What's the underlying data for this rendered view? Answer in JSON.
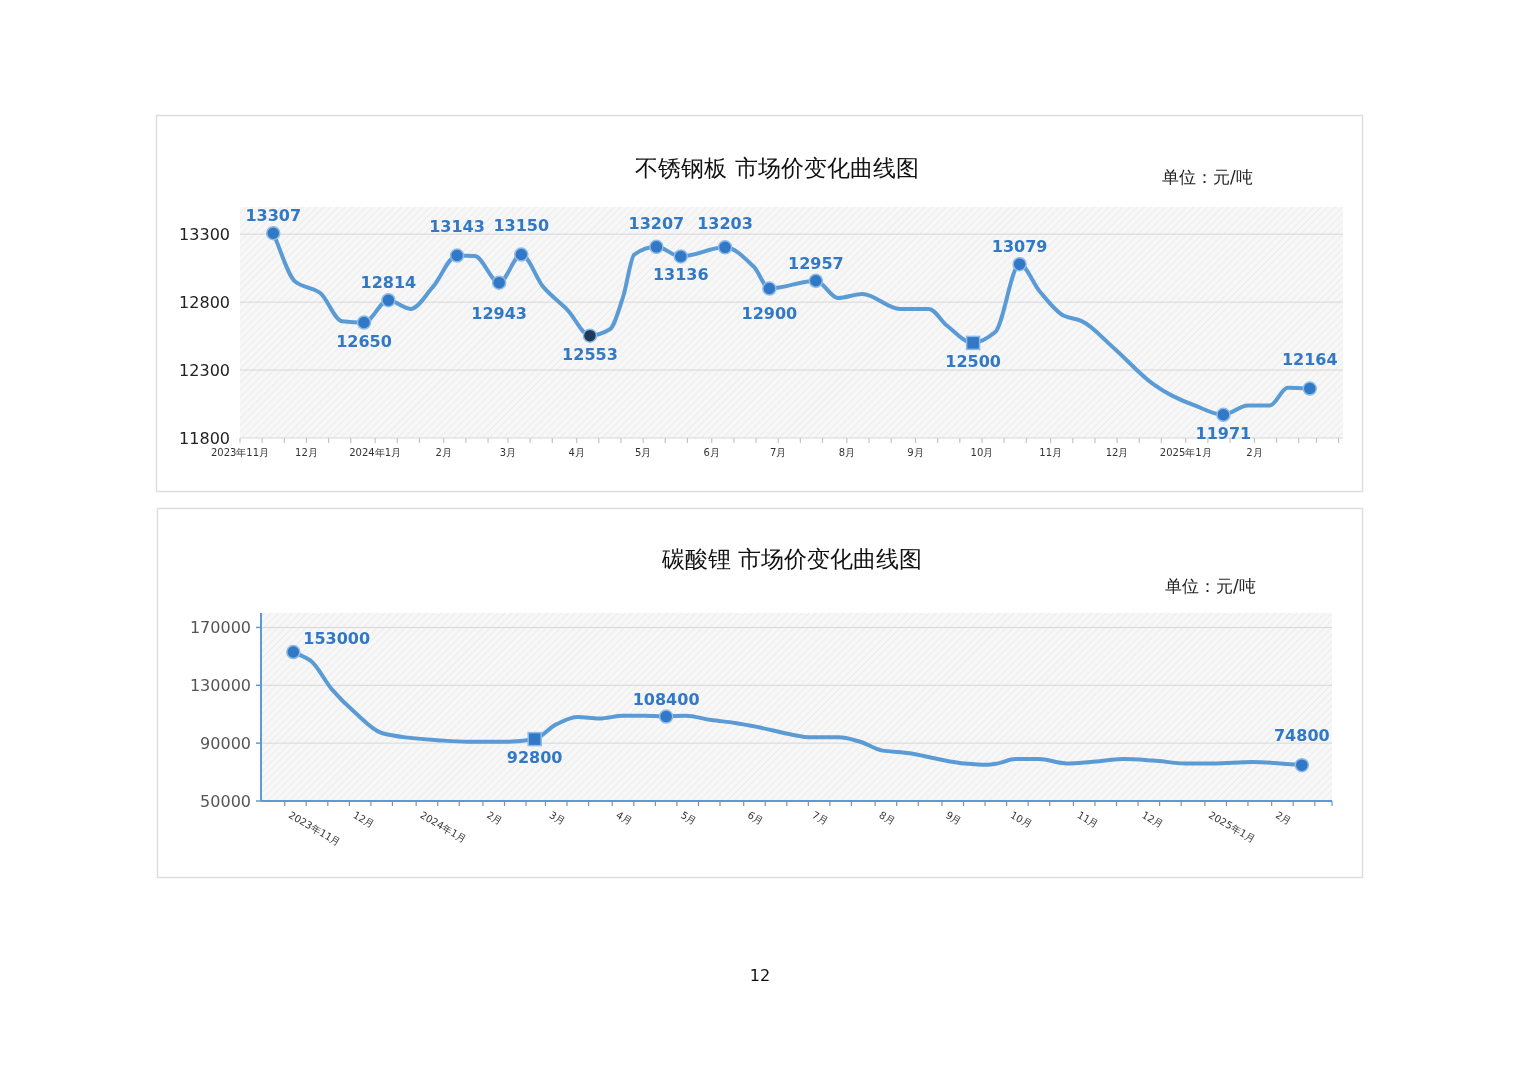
{
  "chart_data": [
    {
      "type": "line",
      "title": "不锈钢板 市场价变化曲线图",
      "annotations": [
        "单位：元/吨"
      ],
      "xlim": [
        "2023-11-01",
        "2025-03-13"
      ],
      "xticks": [
        {
          "value": "2023-11-01",
          "label": "2023年11月"
        },
        {
          "value": "2023-11-11",
          "label": null
        },
        {
          "value": "2023-11-21",
          "label": null
        },
        {
          "value": "2023-12-01",
          "label": "12月"
        },
        {
          "value": "2023-12-11",
          "label": null
        },
        {
          "value": "2023-12-21",
          "label": null
        },
        {
          "value": "2024-01-01",
          "label": "2024年1月"
        },
        {
          "value": "2024-01-11",
          "label": null
        },
        {
          "value": "2024-01-21",
          "label": null
        },
        {
          "value": "2024-02-01",
          "label": "2月"
        },
        {
          "value": "2024-02-11",
          "label": null
        },
        {
          "value": "2024-02-21",
          "label": null
        },
        {
          "value": "2024-03-01",
          "label": "3月"
        },
        {
          "value": "2024-03-11",
          "label": null
        },
        {
          "value": "2024-03-21",
          "label": null
        },
        {
          "value": "2024-04-01",
          "label": "4月"
        },
        {
          "value": "2024-04-11",
          "label": null
        },
        {
          "value": "2024-04-21",
          "label": null
        },
        {
          "value": "2024-05-01",
          "label": "5月"
        },
        {
          "value": "2024-05-11",
          "label": null
        },
        {
          "value": "2024-05-21",
          "label": null
        },
        {
          "value": "2024-06-01",
          "label": "6月"
        },
        {
          "value": "2024-06-11",
          "label": null
        },
        {
          "value": "2024-06-21",
          "label": null
        },
        {
          "value": "2024-07-01",
          "label": "7月"
        },
        {
          "value": "2024-07-11",
          "label": null
        },
        {
          "value": "2024-07-21",
          "label": null
        },
        {
          "value": "2024-08-01",
          "label": "8月"
        },
        {
          "value": "2024-08-11",
          "label": null
        },
        {
          "value": "2024-08-21",
          "label": null
        },
        {
          "value": "2024-09-01",
          "label": "9月"
        },
        {
          "value": "2024-09-11",
          "label": null
        },
        {
          "value": "2024-09-21",
          "label": null
        },
        {
          "value": "2024-10-01",
          "label": "10月"
        },
        {
          "value": "2024-10-11",
          "label": null
        },
        {
          "value": "2024-10-21",
          "label": null
        },
        {
          "value": "2024-11-01",
          "label": "11月"
        },
        {
          "value": "2024-11-11",
          "label": null
        },
        {
          "value": "2024-11-21",
          "label": null
        },
        {
          "value": "2024-12-01",
          "label": "12月"
        },
        {
          "value": "2024-12-11",
          "label": null
        },
        {
          "value": "2024-12-21",
          "label": null
        },
        {
          "value": "2025-01-01",
          "label": "2025年1月"
        },
        {
          "value": "2025-01-11",
          "label": null
        },
        {
          "value": "2025-01-21",
          "label": null
        },
        {
          "value": "2025-02-01",
          "label": "2月"
        },
        {
          "value": "2025-02-11",
          "label": null
        },
        {
          "value": "2025-02-21",
          "label": null
        },
        {
          "value": "2025-03-01",
          "label": null
        },
        {
          "value": "2025-03-11",
          "label": null
        }
      ],
      "ylim": [
        11800,
        13500
      ],
      "yticks": [
        11800,
        12300,
        12800,
        13300
      ],
      "grid": "y",
      "series": [
        {
          "type": "line",
          "color": "#5b9bd5",
          "marker": "none",
          "x": [
            "2023-11-16",
            "2023-11-26",
            "2023-12-07",
            "2023-12-17",
            "2023-12-27",
            "2024-01-07",
            "2024-01-17",
            "2024-01-27",
            "2024-02-07",
            "2024-02-15",
            "2024-02-26",
            "2024-03-07",
            "2024-03-17",
            "2024-03-28",
            "2024-04-07",
            "2024-04-16",
            "2024-04-22",
            "2024-04-27",
            "2024-05-07",
            "2024-05-18",
            "2024-06-07",
            "2024-06-20",
            "2024-06-27",
            "2024-07-18",
            "2024-07-28",
            "2024-08-08",
            "2024-08-25",
            "2024-09-07",
            "2024-09-15",
            "2024-09-27",
            "2024-10-07",
            "2024-10-18",
            "2024-10-27",
            "2024-11-07",
            "2024-11-15",
            "2024-11-29",
            "2024-12-17",
            "2024-12-26",
            "2025-01-05",
            "2025-01-18",
            "2025-01-29",
            "2025-02-08",
            "2025-02-16",
            "2025-02-26"
          ],
          "values": [
            13307,
            12950,
            12870,
            12660,
            12650,
            12814,
            12750,
            12910,
            13143,
            13140,
            12943,
            13150,
            12910,
            12740,
            12553,
            12600,
            12840,
            13150,
            13207,
            13136,
            13203,
            13060,
            12900,
            12957,
            12830,
            12860,
            12750,
            12750,
            12630,
            12500,
            12580,
            13079,
            12880,
            12700,
            12660,
            12470,
            12200,
            12110,
            12040,
            11971,
            12040,
            12040,
            12170,
            12164
          ]
        },
        {
          "type": "scatter",
          "color": "#3178c6",
          "marker": "circle",
          "x": [
            "2023-11-16",
            "2023-12-27",
            "2024-01-07",
            "2024-02-07",
            "2024-02-26",
            "2024-03-07",
            "2024-04-07",
            "2024-05-07",
            "2024-05-18",
            "2024-06-07",
            "2024-06-27",
            "2024-07-18",
            "2024-10-18",
            "2025-01-18",
            "2025-02-26"
          ],
          "values": [
            13307,
            12650,
            12814,
            13143,
            12943,
            13150,
            12553,
            13207,
            13136,
            13203,
            12900,
            12957,
            13079,
            11971,
            12164
          ],
          "colors": [
            "#3178c6",
            "#3178c6",
            "#3178c6",
            "#3178c6",
            "#3178c6",
            "#3178c6",
            "#1f3a5c",
            "#3178c6",
            "#3178c6",
            "#3178c6",
            "#3178c6",
            "#3178c6",
            "#3178c6",
            "#3178c6",
            "#3178c6"
          ],
          "value_labels": [
            "13307",
            "12650",
            "12814",
            "13143",
            "12943",
            "13150",
            "12553",
            "13207",
            "13136",
            "13203",
            "12900",
            "12957",
            "13079",
            "11971",
            "12164"
          ]
        },
        {
          "type": "scatter",
          "color": "#3178c6",
          "marker": "square",
          "x": [
            "2024-09-27"
          ],
          "values": [
            12500
          ],
          "value_labels": [
            "12500"
          ]
        }
      ]
    },
    {
      "type": "line",
      "title": "碳酸锂 市场价变化曲线图",
      "annotations": [
        "单位：元/吨"
      ],
      "xlim": [
        "2023-10-21",
        "2025-03-01"
      ],
      "xticks": [
        {
          "value": "2023-11-01",
          "label": "2023年11月"
        },
        {
          "value": "2023-11-11",
          "label": null
        },
        {
          "value": "2023-11-21",
          "label": null
        },
        {
          "value": "2023-12-01",
          "label": "12月"
        },
        {
          "value": "2023-12-11",
          "label": null
        },
        {
          "value": "2023-12-21",
          "label": null
        },
        {
          "value": "2024-01-01",
          "label": "2024年1月"
        },
        {
          "value": "2024-01-11",
          "label": null
        },
        {
          "value": "2024-01-21",
          "label": null
        },
        {
          "value": "2024-02-01",
          "label": "2月"
        },
        {
          "value": "2024-02-11",
          "label": null
        },
        {
          "value": "2024-02-21",
          "label": null
        },
        {
          "value": "2024-03-01",
          "label": "3月"
        },
        {
          "value": "2024-03-11",
          "label": null
        },
        {
          "value": "2024-03-21",
          "label": null
        },
        {
          "value": "2024-04-01",
          "label": "4月"
        },
        {
          "value": "2024-04-11",
          "label": null
        },
        {
          "value": "2024-04-21",
          "label": null
        },
        {
          "value": "2024-05-01",
          "label": "5月"
        },
        {
          "value": "2024-05-11",
          "label": null
        },
        {
          "value": "2024-05-21",
          "label": null
        },
        {
          "value": "2024-06-01",
          "label": "6月"
        },
        {
          "value": "2024-06-11",
          "label": null
        },
        {
          "value": "2024-06-21",
          "label": null
        },
        {
          "value": "2024-07-01",
          "label": "7月"
        },
        {
          "value": "2024-07-11",
          "label": null
        },
        {
          "value": "2024-07-21",
          "label": null
        },
        {
          "value": "2024-08-01",
          "label": "8月"
        },
        {
          "value": "2024-08-11",
          "label": null
        },
        {
          "value": "2024-08-21",
          "label": null
        },
        {
          "value": "2024-09-01",
          "label": "9月"
        },
        {
          "value": "2024-09-11",
          "label": null
        },
        {
          "value": "2024-09-21",
          "label": null
        },
        {
          "value": "2024-10-01",
          "label": "10月"
        },
        {
          "value": "2024-10-11",
          "label": null
        },
        {
          "value": "2024-10-21",
          "label": null
        },
        {
          "value": "2024-11-01",
          "label": "11月"
        },
        {
          "value": "2024-11-11",
          "label": null
        },
        {
          "value": "2024-11-21",
          "label": null
        },
        {
          "value": "2024-12-01",
          "label": "12月"
        },
        {
          "value": "2024-12-11",
          "label": null
        },
        {
          "value": "2024-12-21",
          "label": null
        },
        {
          "value": "2025-01-01",
          "label": "2025年1月"
        },
        {
          "value": "2025-01-11",
          "label": null
        },
        {
          "value": "2025-01-21",
          "label": null
        },
        {
          "value": "2025-02-01",
          "label": "2月"
        },
        {
          "value": "2025-02-11",
          "label": null
        },
        {
          "value": "2025-02-21",
          "label": null
        },
        {
          "value": "2025-03-01",
          "label": null
        }
      ],
      "ylim": [
        50000,
        180000
      ],
      "yticks": [
        50000,
        90000,
        130000,
        170000
      ],
      "grid": "y",
      "series": [
        {
          "type": "line",
          "color": "#5b9bd5",
          "marker": "none",
          "x": [
            "2023-11-05",
            "2023-11-13",
            "2023-11-23",
            "2023-12-03",
            "2023-12-16",
            "2023-12-27",
            "2024-01-11",
            "2024-01-25",
            "2024-02-12",
            "2024-02-25",
            "2024-03-06",
            "2024-03-16",
            "2024-03-26",
            "2024-04-06",
            "2024-04-16",
            "2024-04-26",
            "2024-05-05",
            "2024-05-17",
            "2024-05-28",
            "2024-06-08",
            "2024-06-23",
            "2024-07-02",
            "2024-07-15",
            "2024-07-25",
            "2024-08-04",
            "2024-08-17",
            "2024-08-30",
            "2024-09-11",
            "2024-09-22",
            "2024-09-27",
            "2024-10-05",
            "2024-10-16",
            "2024-10-29",
            "2024-11-09",
            "2024-11-24",
            "2024-12-08",
            "2024-12-23",
            "2025-01-05",
            "2025-01-23",
            "2025-02-05",
            "2025-02-15"
          ],
          "values": [
            153000,
            147000,
            127000,
            112000,
            97000,
            94000,
            92000,
            91000,
            91000,
            92800,
            103000,
            108000,
            107000,
            109000,
            109000,
            108400,
            109000,
            106000,
            104000,
            101000,
            96000,
            94000,
            94000,
            91000,
            85000,
            83000,
            79000,
            76000,
            75000,
            76000,
            79000,
            79000,
            76000,
            77000,
            79000,
            78000,
            76000,
            76000,
            77000,
            76000,
            74800
          ]
        },
        {
          "type": "scatter",
          "color": "#3178c6",
          "marker": "circle",
          "x": [
            "2023-11-05",
            "2024-04-26",
            "2025-02-15"
          ],
          "values": [
            153000,
            108400,
            74800
          ],
          "value_labels": [
            "153000",
            "108400",
            "74800"
          ]
        },
        {
          "type": "scatter",
          "color": "#3178c6",
          "marker": "square",
          "x": [
            "2024-02-25"
          ],
          "values": [
            92800
          ],
          "value_labels": [
            "92800"
          ]
        }
      ]
    },
    {
      "type": "other",
      "annotations": [
        "12"
      ]
    }
  ]
}
